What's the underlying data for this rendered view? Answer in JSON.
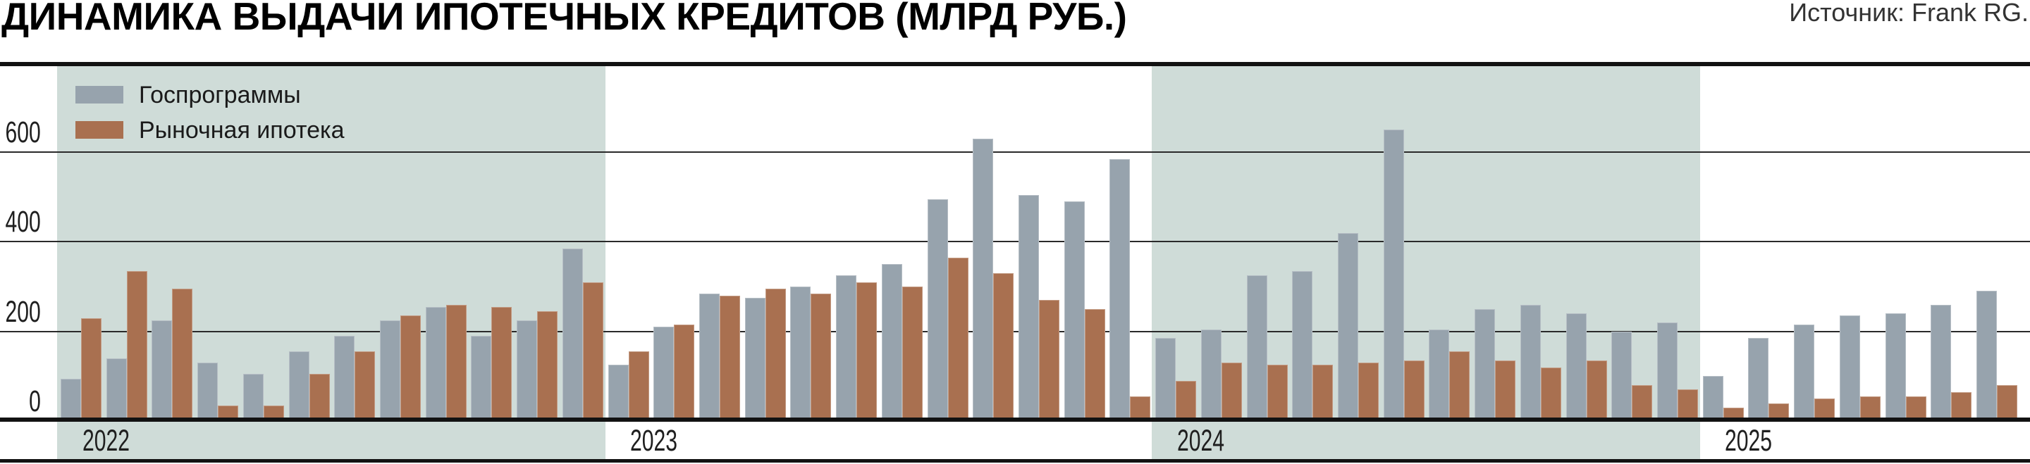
{
  "header": {
    "title": "ДИНАМИКА ВЫДАЧИ ИПОТЕЧНЫХ КРЕДИТОВ (МЛРД РУБ.)",
    "source": "Источник: Frank RG."
  },
  "legend": [
    {
      "label": "Госпрограммы",
      "color": "#97a3ad"
    },
    {
      "label": "Рыночная ипотека",
      "color": "#a97050"
    }
  ],
  "colors": {
    "gov_bar": "#97a3ad",
    "market_bar": "#a97050",
    "year_band": "#cfdcd8",
    "gridline": "#2a2a2a",
    "axis_line": "#121212",
    "text": "#1f1f1f"
  },
  "chart_data": {
    "type": "bar",
    "title": "ДИНАМИКА ВЫДАЧИ ИПОТЕЧНЫХ КРЕДИТОВ (МЛРД РУБ.)",
    "source": "Источник: Frank RG.",
    "units": "млрд руб.",
    "ylim": [
      0,
      680
    ],
    "yticks": [
      0,
      200,
      400,
      600
    ],
    "grid": "horizontal",
    "legend_position": "top-left",
    "year_labels": [
      "2022",
      "2023",
      "2024",
      "2025"
    ],
    "months_per_year": [
      12,
      12,
      12,
      7
    ],
    "shaded_years": [
      "2022",
      "2024"
    ],
    "categories": [
      "2022-01",
      "2022-02",
      "2022-03",
      "2022-04",
      "2022-05",
      "2022-06",
      "2022-07",
      "2022-08",
      "2022-09",
      "2022-10",
      "2022-11",
      "2022-12",
      "2023-01",
      "2023-02",
      "2023-03",
      "2023-04",
      "2023-05",
      "2023-06",
      "2023-07",
      "2023-08",
      "2023-09",
      "2023-10",
      "2023-11",
      "2023-12",
      "2024-01",
      "2024-02",
      "2024-03",
      "2024-04",
      "2024-05",
      "2024-06",
      "2024-07",
      "2024-08",
      "2024-09",
      "2024-10",
      "2024-11",
      "2024-12",
      "2025-01",
      "2025-02",
      "2025-03",
      "2025-04",
      "2025-05",
      "2025-06",
      "2025-07"
    ],
    "series": [
      {
        "name": "Госпрограммы",
        "color": "#97a3ad",
        "values": [
          95,
          140,
          225,
          130,
          105,
          155,
          190,
          225,
          255,
          190,
          225,
          385,
          125,
          210,
          285,
          275,
          300,
          325,
          350,
          495,
          630,
          505,
          490,
          585,
          185,
          205,
          325,
          335,
          420,
          650,
          205,
          250,
          260,
          240,
          200,
          220,
          100,
          185,
          215,
          235,
          240,
          260,
          290
        ]
      },
      {
        "name": "Рыночная ипотека",
        "color": "#a97050",
        "values": [
          230,
          335,
          295,
          35,
          35,
          105,
          155,
          235,
          260,
          255,
          245,
          310,
          155,
          215,
          280,
          295,
          285,
          310,
          300,
          365,
          330,
          270,
          250,
          55,
          90,
          130,
          125,
          125,
          130,
          135,
          155,
          135,
          120,
          135,
          80,
          70,
          30,
          40,
          50,
          55,
          55,
          65,
          80
        ]
      }
    ]
  }
}
